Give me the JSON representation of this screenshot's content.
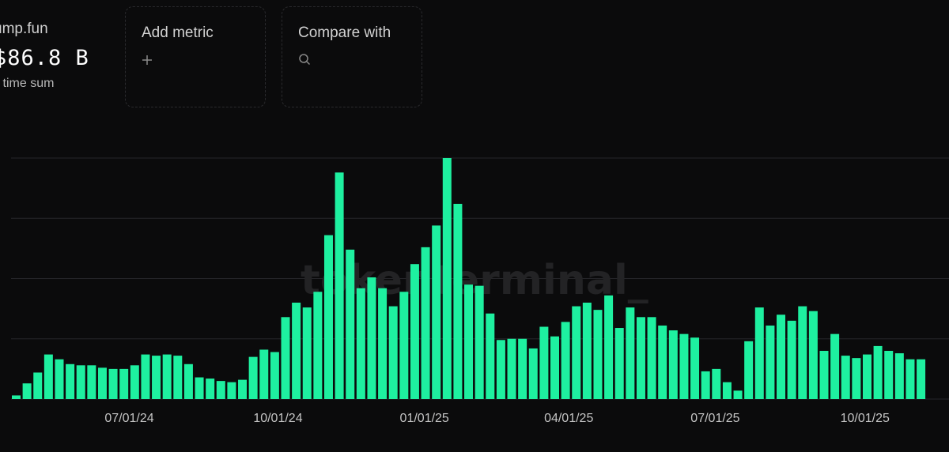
{
  "summary": {
    "project": "ump.fun",
    "total": "$86.8 B",
    "caption": "ll time sum"
  },
  "add_metric": {
    "label": "Add metric",
    "icon": "plus-icon"
  },
  "compare": {
    "label": "Compare with",
    "icon": "search-icon"
  },
  "watermark": "tokenterminal_",
  "colors": {
    "bar": "#1ef0a0",
    "grid": "#26262a",
    "background": "#0b0b0c"
  },
  "chart_data": {
    "type": "bar",
    "grid": true,
    "ylim": [
      0,
      100
    ],
    "xlabel": "",
    "ylabel": "",
    "x_tick_labels": [
      "07/01/24",
      "10/01/24",
      "01/01/25",
      "04/01/25",
      "07/01/25",
      "10/01/25"
    ],
    "x_tick_index": [
      10.5,
      24.3,
      37.9,
      51.3,
      64.9,
      78.8
    ],
    "values": [
      1.5,
      6.5,
      11,
      18.5,
      16.5,
      14.5,
      14,
      14,
      13,
      12.5,
      12.5,
      14,
      18.5,
      18,
      18.5,
      18,
      14.5,
      9,
      8.5,
      7.5,
      7,
      8,
      17.5,
      20.5,
      19.5,
      34,
      40,
      38,
      44.5,
      68,
      94,
      62,
      46,
      50.5,
      46,
      38.5,
      44.5,
      56,
      63,
      72,
      100,
      81,
      47.5,
      47,
      35.5,
      24.5,
      25,
      25,
      21,
      30,
      26,
      32,
      38.5,
      40,
      37,
      43,
      29.5,
      38,
      34,
      34,
      30.5,
      28.5,
      27,
      25.5,
      11.5,
      12.5,
      7,
      3.5,
      24,
      38,
      30.5,
      35,
      32.5,
      38.5,
      36.5,
      20,
      27,
      18,
      17,
      18.5,
      22,
      20,
      19,
      16.5,
      16.5
    ]
  }
}
